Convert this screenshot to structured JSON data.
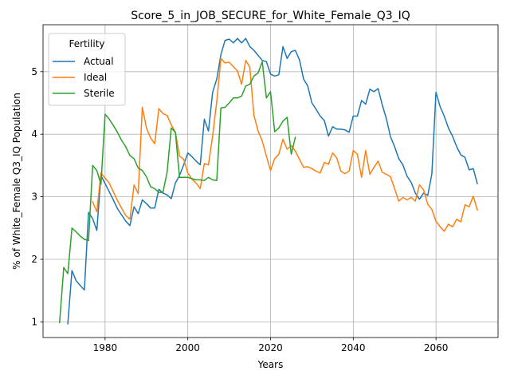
{
  "chart_data": {
    "type": "line",
    "title": "Score_5_in_JOB_SECURE_for_White_Female_Q3_IQ",
    "xlabel": "Years",
    "ylabel": "% of White_Female Q3_IQ Population",
    "xlim": [
      1965,
      2075
    ],
    "ylim": [
      0.75,
      5.75
    ],
    "xticks": [
      1980,
      2000,
      2020,
      2040,
      2060
    ],
    "yticks": [
      1,
      2,
      3,
      4,
      5
    ],
    "grid": true,
    "legend": {
      "title": "Fertility",
      "placement": "upper-left"
    },
    "series": [
      {
        "name": "Actual",
        "color": "#1f77b4",
        "x": [
          1971,
          1972,
          1973,
          1974,
          1975,
          1976,
          1977,
          1978,
          1979,
          1980,
          1981,
          1982,
          1983,
          1984,
          1985,
          1986,
          1987,
          1988,
          1989,
          1990,
          1991,
          1992,
          1993,
          1994,
          1995,
          1996,
          1997,
          1998,
          1999,
          2000,
          2001,
          2002,
          2003,
          2004,
          2005,
          2006,
          2007,
          2008,
          2009,
          2010,
          2011,
          2012,
          2013,
          2014,
          2015,
          2016,
          2017,
          2018,
          2019,
          2020,
          2021,
          2022,
          2023,
          2024,
          2025,
          2026,
          2027,
          2028,
          2029,
          2030,
          2031,
          2032,
          2033,
          2034,
          2035,
          2036,
          2037,
          2038,
          2039,
          2040,
          2041,
          2042,
          2043,
          2044,
          2045,
          2046,
          2047,
          2048,
          2049,
          2050,
          2051,
          2052,
          2053,
          2054,
          2055,
          2056,
          2057,
          2058,
          2059,
          2060,
          2061,
          2062,
          2063,
          2064,
          2065,
          2066,
          2067,
          2068,
          2069,
          2070
        ],
        "y": [
          0.97,
          1.82,
          1.66,
          1.58,
          1.51,
          2.75,
          2.65,
          2.46,
          3.34,
          3.21,
          3.08,
          2.95,
          2.81,
          2.71,
          2.61,
          2.54,
          2.84,
          2.73,
          2.95,
          2.89,
          2.82,
          2.82,
          3.12,
          3.06,
          3.03,
          2.97,
          3.22,
          3.34,
          3.51,
          3.7,
          3.64,
          3.57,
          3.51,
          4.24,
          4.05,
          4.67,
          4.88,
          5.27,
          5.5,
          5.52,
          5.46,
          5.53,
          5.46,
          5.53,
          5.4,
          5.34,
          5.26,
          5.18,
          5.16,
          4.96,
          4.93,
          4.95,
          5.4,
          5.21,
          5.32,
          5.34,
          5.19,
          4.88,
          4.77,
          4.5,
          4.4,
          4.29,
          4.22,
          3.97,
          4.12,
          4.08,
          4.08,
          4.07,
          4.03,
          4.29,
          4.29,
          4.54,
          4.48,
          4.72,
          4.68,
          4.73,
          4.47,
          4.25,
          3.96,
          3.8,
          3.61,
          3.51,
          3.33,
          3.23,
          3.06,
          2.96,
          3.06,
          3.02,
          3.36,
          4.67,
          4.44,
          4.29,
          4.1,
          3.97,
          3.8,
          3.67,
          3.63,
          3.43,
          3.45,
          3.21
        ]
      },
      {
        "name": "Ideal",
        "color": "#ff7f0e",
        "x": [
          1977,
          1978,
          1979,
          1980,
          1981,
          1982,
          1983,
          1984,
          1985,
          1986,
          1987,
          1988,
          1989,
          1990,
          1991,
          1992,
          1993,
          1994,
          1995,
          1996,
          1997,
          1998,
          1999,
          2000,
          2001,
          2002,
          2003,
          2004,
          2005,
          2006,
          2007,
          2008,
          2009,
          2010,
          2011,
          2012,
          2013,
          2014,
          2015,
          2016,
          2017,
          2018,
          2019,
          2020,
          2021,
          2022,
          2023,
          2024,
          2025,
          2026,
          2027,
          2028,
          2029,
          2030,
          2031,
          2032,
          2033,
          2034,
          2035,
          2036,
          2037,
          2038,
          2039,
          2040,
          2041,
          2042,
          2043,
          2044,
          2045,
          2046,
          2047,
          2048,
          2049,
          2050,
          2051,
          2052,
          2053,
          2054,
          2055,
          2056,
          2057,
          2058,
          2059,
          2060,
          2061,
          2062,
          2063,
          2064,
          2065,
          2066,
          2067,
          2068,
          2069,
          2070
        ],
        "y": [
          2.92,
          2.76,
          3.38,
          3.3,
          3.22,
          3.08,
          2.94,
          2.82,
          2.7,
          2.64,
          3.19,
          3.05,
          4.43,
          4.1,
          3.94,
          3.85,
          4.41,
          4.33,
          4.3,
          4.15,
          4.03,
          3.65,
          3.6,
          3.38,
          3.28,
          3.22,
          3.13,
          3.53,
          3.51,
          3.97,
          4.52,
          5.21,
          5.14,
          5.15,
          5.08,
          5.01,
          4.8,
          5.18,
          5.07,
          4.3,
          4.05,
          3.89,
          3.65,
          3.42,
          3.61,
          3.68,
          3.92,
          3.76,
          3.82,
          3.73,
          3.6,
          3.47,
          3.48,
          3.45,
          3.41,
          3.38,
          3.55,
          3.52,
          3.7,
          3.62,
          3.41,
          3.37,
          3.41,
          3.74,
          3.68,
          3.31,
          3.74,
          3.36,
          3.47,
          3.57,
          3.39,
          3.36,
          3.32,
          3.13,
          2.93,
          2.99,
          2.95,
          2.99,
          2.93,
          3.19,
          3.11,
          2.88,
          2.8,
          2.61,
          2.52,
          2.45,
          2.56,
          2.52,
          2.64,
          2.6,
          2.87,
          2.84,
          3.01,
          2.79
        ]
      },
      {
        "name": "Sterile",
        "color": "#2ca02c",
        "x": [
          1969,
          1970,
          1971,
          1972,
          1973,
          1974,
          1975,
          1976,
          1977,
          1978,
          1979,
          1980,
          1981,
          1982,
          1983,
          1984,
          1985,
          1986,
          1987,
          1988,
          1989,
          1990,
          1991,
          1992,
          1993,
          1994,
          1995,
          1996,
          1997,
          1998,
          1999,
          2000,
          2001,
          2002,
          2003,
          2004,
          2005,
          2006,
          2007,
          2008,
          2009,
          2010,
          2011,
          2012,
          2013,
          2014,
          2015,
          2016,
          2017,
          2018,
          2019,
          2020,
          2021,
          2022,
          2023,
          2024,
          2025,
          2026
        ],
        "y": [
          0.99,
          1.87,
          1.77,
          2.5,
          2.44,
          2.37,
          2.32,
          2.3,
          3.5,
          3.42,
          3.2,
          4.32,
          4.24,
          4.14,
          4.03,
          3.9,
          3.8,
          3.66,
          3.61,
          3.46,
          3.42,
          3.32,
          3.16,
          3.13,
          3.07,
          3.07,
          3.39,
          4.1,
          4.03,
          3.31,
          3.31,
          3.31,
          3.29,
          3.27,
          3.27,
          3.26,
          3.31,
          3.27,
          3.26,
          4.42,
          4.43,
          4.5,
          4.58,
          4.58,
          4.61,
          4.77,
          4.8,
          4.93,
          4.98,
          5.16,
          4.58,
          4.68,
          4.04,
          4.1,
          4.21,
          4.27,
          3.68,
          3.95
        ]
      }
    ]
  }
}
